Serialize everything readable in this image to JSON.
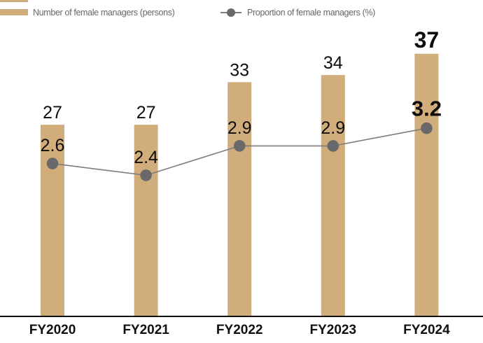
{
  "legend": {
    "items": [
      {
        "label": "Number of female managers (persons)",
        "marker": "bar-swatch"
      },
      {
        "label": "Proportion of female managers (%)",
        "marker": "line-dot"
      }
    ],
    "text_color": "#666666"
  },
  "chart_data": {
    "type": "bar",
    "subtype": "bar-line-combo",
    "categories": [
      "FY2020",
      "FY2021",
      "FY2022",
      "FY2023",
      "FY2024"
    ],
    "series": [
      {
        "name": "Number of female managers (persons)",
        "type": "bar",
        "values": [
          27,
          27,
          33,
          34,
          37
        ],
        "value_labels": [
          "27",
          "27",
          "33",
          "34",
          "37"
        ],
        "color": "#d2ad7c"
      },
      {
        "name": "Proportion of female managers (%)",
        "type": "line",
        "values": [
          2.6,
          2.4,
          2.9,
          2.9,
          3.2
        ],
        "value_labels": [
          "2.6",
          "2.4",
          "2.9",
          "2.9",
          "3.2"
        ],
        "line_color": "#7d7d7d",
        "marker_color": "#696969"
      }
    ],
    "emphasized_category_index": 4,
    "title": "",
    "xlabel": "",
    "ylabel": "",
    "bar_axis_range": [
      0,
      45
    ],
    "line_axis_range": [
      0,
      5.4
    ],
    "grid": false,
    "legend_position": "top",
    "baseline_color": "#111111",
    "data_label_color": "#0d0d0d",
    "axis_label_color": "#111111"
  }
}
